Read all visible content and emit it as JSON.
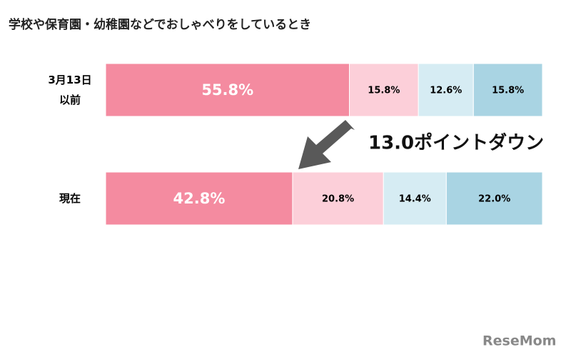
{
  "chart_data": {
    "type": "stacked-bar-horizontal",
    "title": "学校や保育園・幼稚園などでおしゃべりをしているとき",
    "categories": [
      "3月13日\n以前",
      "現在"
    ],
    "xlim": [
      0,
      100
    ],
    "series": [
      {
        "color": "#f48ba0",
        "label_color": "#ffffff",
        "values": [
          55.8,
          42.8
        ],
        "value_labels": [
          "55.8%",
          "42.8%"
        ]
      },
      {
        "color": "#fccfd9",
        "label_color": "#000000",
        "values": [
          15.8,
          20.8
        ],
        "value_labels": [
          "15.8%",
          "20.8%"
        ]
      },
      {
        "color": "#d6ecf3",
        "label_color": "#000000",
        "values": [
          12.6,
          14.4
        ],
        "value_labels": [
          "12.6%",
          "14.4%"
        ]
      },
      {
        "color": "#a9d4e3",
        "label_color": "#000000",
        "values": [
          15.8,
          22.0
        ],
        "value_labels": [
          "15.8%",
          "22.0%"
        ]
      }
    ],
    "annotation": "13.0ポイントダウン",
    "logo": "ReseMom"
  }
}
